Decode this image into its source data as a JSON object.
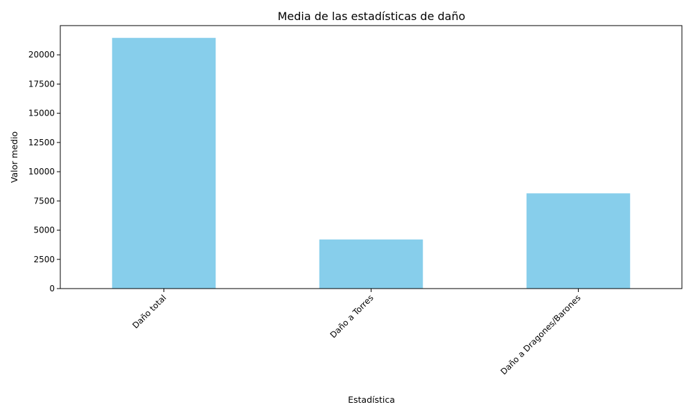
{
  "chart_data": {
    "type": "bar",
    "title": "Media de las estadísticas de daño",
    "xlabel": "Estadística",
    "ylabel": "Valor medio",
    "categories": [
      "Daño total",
      "Daño a Torres",
      "Daño a Dragones/Barones"
    ],
    "values": [
      21450,
      4200,
      8150
    ],
    "ylim": [
      0,
      22500
    ],
    "yticks": [
      0,
      2500,
      5000,
      7500,
      10000,
      12500,
      15000,
      17500,
      20000
    ],
    "ytick_labels": [
      "0",
      "2500",
      "5000",
      "7500",
      "10000",
      "12500",
      "15000",
      "17500",
      "20000"
    ],
    "bar_color": "#87ceeb",
    "xtick_rotation_deg": 45,
    "grid": false,
    "legend": false
  }
}
